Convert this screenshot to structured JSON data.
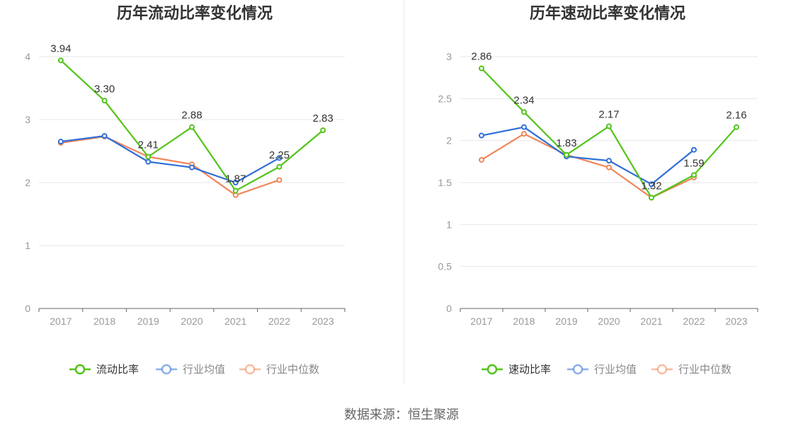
{
  "colors": {
    "primary": "#52c41a",
    "industry_avg": "#2f6fd8",
    "industry_median": "#f0865a",
    "grid": "#e6e6ee",
    "axis_text": "#999999",
    "title": "#333333"
  },
  "source_text": "数据来源：恒生聚源",
  "chart_data": [
    {
      "type": "line",
      "title": "历年流动比率变化情况",
      "categories": [
        "2017",
        "2018",
        "2019",
        "2020",
        "2021",
        "2022",
        "2023"
      ],
      "ylim": [
        0,
        4
      ],
      "yticks": [
        "0",
        "1",
        "2",
        "3",
        "4"
      ],
      "series": [
        {
          "name": "流动比率",
          "values": [
            3.94,
            3.3,
            2.41,
            2.88,
            1.87,
            2.25,
            2.83
          ],
          "labels": [
            "3.94",
            "3.30",
            "2.41",
            "2.88",
            "1.87",
            "2.25",
            "2.83"
          ]
        },
        {
          "name": "行业均值",
          "values": [
            2.65,
            2.74,
            2.33,
            2.24,
            2.0,
            2.39,
            null
          ]
        },
        {
          "name": "行业中位数",
          "values": [
            2.63,
            2.73,
            2.41,
            2.29,
            1.8,
            2.04,
            null
          ]
        }
      ],
      "legend_position": "bottom",
      "grid": true
    },
    {
      "type": "line",
      "title": "历年速动比率变化情况",
      "categories": [
        "2017",
        "2018",
        "2019",
        "2020",
        "2021",
        "2022",
        "2023"
      ],
      "ylim": [
        0,
        3
      ],
      "yticks": [
        "0",
        "0.5",
        "1",
        "1.5",
        "2",
        "2.5",
        "3"
      ],
      "series": [
        {
          "name": "速动比率",
          "values": [
            2.86,
            2.34,
            1.83,
            2.17,
            1.32,
            1.59,
            2.16
          ],
          "labels": [
            "2.86",
            "2.34",
            "1.83",
            "2.17",
            "1.32",
            "1.59",
            "2.16"
          ]
        },
        {
          "name": "行业均值",
          "values": [
            2.06,
            2.16,
            1.81,
            1.76,
            1.48,
            1.89,
            null
          ]
        },
        {
          "name": "行业中位数",
          "values": [
            1.77,
            2.08,
            1.83,
            1.68,
            1.32,
            1.56,
            null
          ]
        }
      ],
      "legend_position": "bottom",
      "grid": true
    }
  ]
}
